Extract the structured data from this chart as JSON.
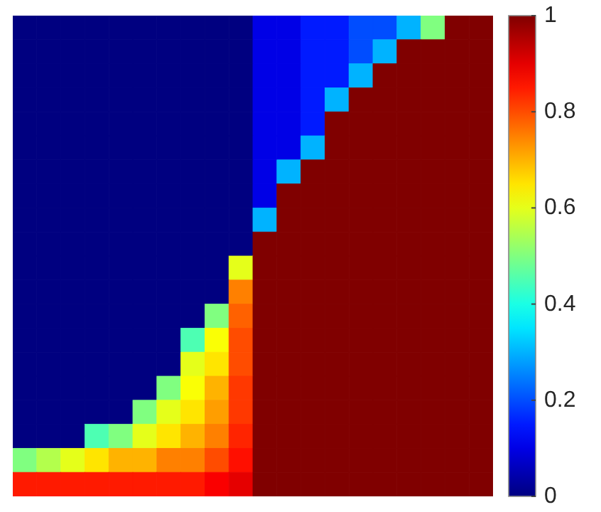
{
  "chart_data": {
    "type": "heatmap",
    "tick_labels": false,
    "clim": [
      0,
      1
    ],
    "cticks": [
      0,
      0.2,
      0.4,
      0.6,
      0.8,
      1
    ],
    "categories": [
      null,
      null,
      null,
      null,
      null,
      null,
      null,
      null,
      null,
      null,
      null,
      null,
      null,
      null,
      null,
      null,
      null,
      null,
      null,
      null
    ],
    "y_categories": [
      null,
      null,
      null,
      null,
      null,
      null,
      null,
      null,
      null,
      null,
      null,
      null,
      null,
      null,
      null,
      null,
      null,
      null,
      null,
      null
    ],
    "cells": [
      [
        0,
        0,
        0,
        0,
        0,
        0,
        0,
        0,
        0,
        0,
        0.1,
        0.1,
        0.15,
        0.15,
        0.2,
        0.2,
        0.3,
        0.5,
        1,
        1
      ],
      [
        0,
        0,
        0,
        0,
        0,
        0,
        0,
        0,
        0,
        0,
        0.1,
        0.1,
        0.15,
        0.15,
        0.2,
        0.3,
        1,
        1,
        1,
        1
      ],
      [
        0,
        0,
        0,
        0,
        0,
        0,
        0,
        0,
        0,
        0,
        0.1,
        0.1,
        0.15,
        0.15,
        0.3,
        1,
        1,
        1,
        1,
        1
      ],
      [
        0,
        0,
        0,
        0,
        0,
        0,
        0,
        0,
        0,
        0,
        0.1,
        0.1,
        0.15,
        0.3,
        1,
        1,
        1,
        1,
        1,
        1
      ],
      [
        0,
        0,
        0,
        0,
        0,
        0,
        0,
        0,
        0,
        0,
        0.1,
        0.1,
        0.15,
        1,
        1,
        1,
        1,
        1,
        1,
        1
      ],
      [
        0,
        0,
        0,
        0,
        0,
        0,
        0,
        0,
        0,
        0,
        0.1,
        0.1,
        0.3,
        1,
        1,
        1,
        1,
        1,
        1,
        1
      ],
      [
        0,
        0,
        0,
        0,
        0,
        0,
        0,
        0,
        0,
        0,
        0.1,
        0.3,
        1,
        1,
        1,
        1,
        1,
        1,
        1,
        1
      ],
      [
        0,
        0,
        0,
        0,
        0,
        0,
        0,
        0,
        0,
        0,
        0.1,
        1,
        1,
        1,
        1,
        1,
        1,
        1,
        1,
        1
      ],
      [
        0,
        0,
        0,
        0,
        0,
        0,
        0,
        0,
        0,
        0,
        0.3,
        1,
        1,
        1,
        1,
        1,
        1,
        1,
        1,
        1
      ],
      [
        0,
        0,
        0,
        0,
        0,
        0,
        0,
        0,
        0,
        0,
        1,
        1,
        1,
        1,
        1,
        1,
        1,
        1,
        1,
        1
      ],
      [
        0,
        0,
        0,
        0,
        0,
        0,
        0,
        0,
        0,
        0.6,
        1,
        1,
        1,
        1,
        1,
        1,
        1,
        1,
        1,
        1
      ],
      [
        0,
        0,
        0,
        0,
        0,
        0,
        0,
        0,
        0,
        0.75,
        1,
        1,
        1,
        1,
        1,
        1,
        1,
        1,
        1,
        1
      ],
      [
        0,
        0,
        0,
        0,
        0,
        0,
        0,
        0,
        0.5,
        0.78,
        1,
        1,
        1,
        1,
        1,
        1,
        1,
        1,
        1,
        1
      ],
      [
        0,
        0,
        0,
        0,
        0,
        0,
        0,
        0.45,
        0.62,
        0.8,
        1,
        1,
        1,
        1,
        1,
        1,
        1,
        1,
        1,
        1
      ],
      [
        0,
        0,
        0,
        0,
        0,
        0,
        0,
        0.6,
        0.65,
        0.8,
        1,
        1,
        1,
        1,
        1,
        1,
        1,
        1,
        1,
        1
      ],
      [
        0,
        0,
        0,
        0,
        0,
        0,
        0.5,
        0.62,
        0.7,
        0.82,
        1,
        1,
        1,
        1,
        1,
        1,
        1,
        1,
        1,
        1
      ],
      [
        0,
        0,
        0,
        0,
        0,
        0.5,
        0.6,
        0.65,
        0.72,
        0.82,
        1,
        1,
        1,
        1,
        1,
        1,
        1,
        1,
        1,
        1
      ],
      [
        0,
        0,
        0,
        0.45,
        0.5,
        0.6,
        0.65,
        0.7,
        0.75,
        0.84,
        1,
        1,
        1,
        1,
        1,
        1,
        1,
        1,
        1,
        1
      ],
      [
        0.5,
        0.55,
        0.6,
        0.65,
        0.7,
        0.7,
        0.75,
        0.75,
        0.8,
        0.86,
        1,
        1,
        1,
        1,
        1,
        1,
        1,
        1,
        1,
        1
      ],
      [
        0.85,
        0.85,
        0.85,
        0.85,
        0.85,
        0.85,
        0.85,
        0.85,
        0.88,
        0.9,
        1,
        1,
        1,
        1,
        1,
        1,
        1,
        1,
        1,
        1
      ]
    ]
  }
}
